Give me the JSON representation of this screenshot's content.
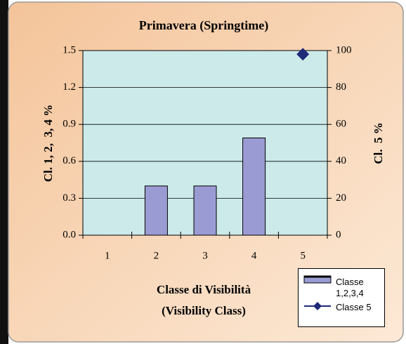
{
  "chart_data": {
    "type": "bar",
    "title": "Primavera (Springtime)",
    "x_label": "Classe di Visibilità (Visibility Class)",
    "y_label": "Cl. 1, 2,  3, 4 %",
    "y2_label": "Cl.  5 %",
    "categories": [
      "1",
      "2",
      "3",
      "4",
      "5"
    ],
    "series": [
      {
        "name": "Classe 1,2,3,4",
        "type": "bar",
        "color": "#9b9bd3",
        "values": [
          null,
          0.4,
          0.4,
          0.79,
          null
        ]
      },
      {
        "name": "Classe 5",
        "type": "line",
        "color": "#1f2a78",
        "axis": "y2",
        "values": [
          null,
          null,
          null,
          null,
          98
        ]
      }
    ],
    "ylim": [
      0,
      1.5
    ],
    "yticks": [
      {
        "value": 0,
        "label": "0.0"
      },
      0.3,
      0.6,
      0.9,
      1.2,
      1.5
    ],
    "y2lim": [
      0,
      100
    ],
    "y2ticks": [
      0,
      20,
      40,
      60,
      80,
      100
    ],
    "grid": true,
    "legend": "bottom-right"
  }
}
